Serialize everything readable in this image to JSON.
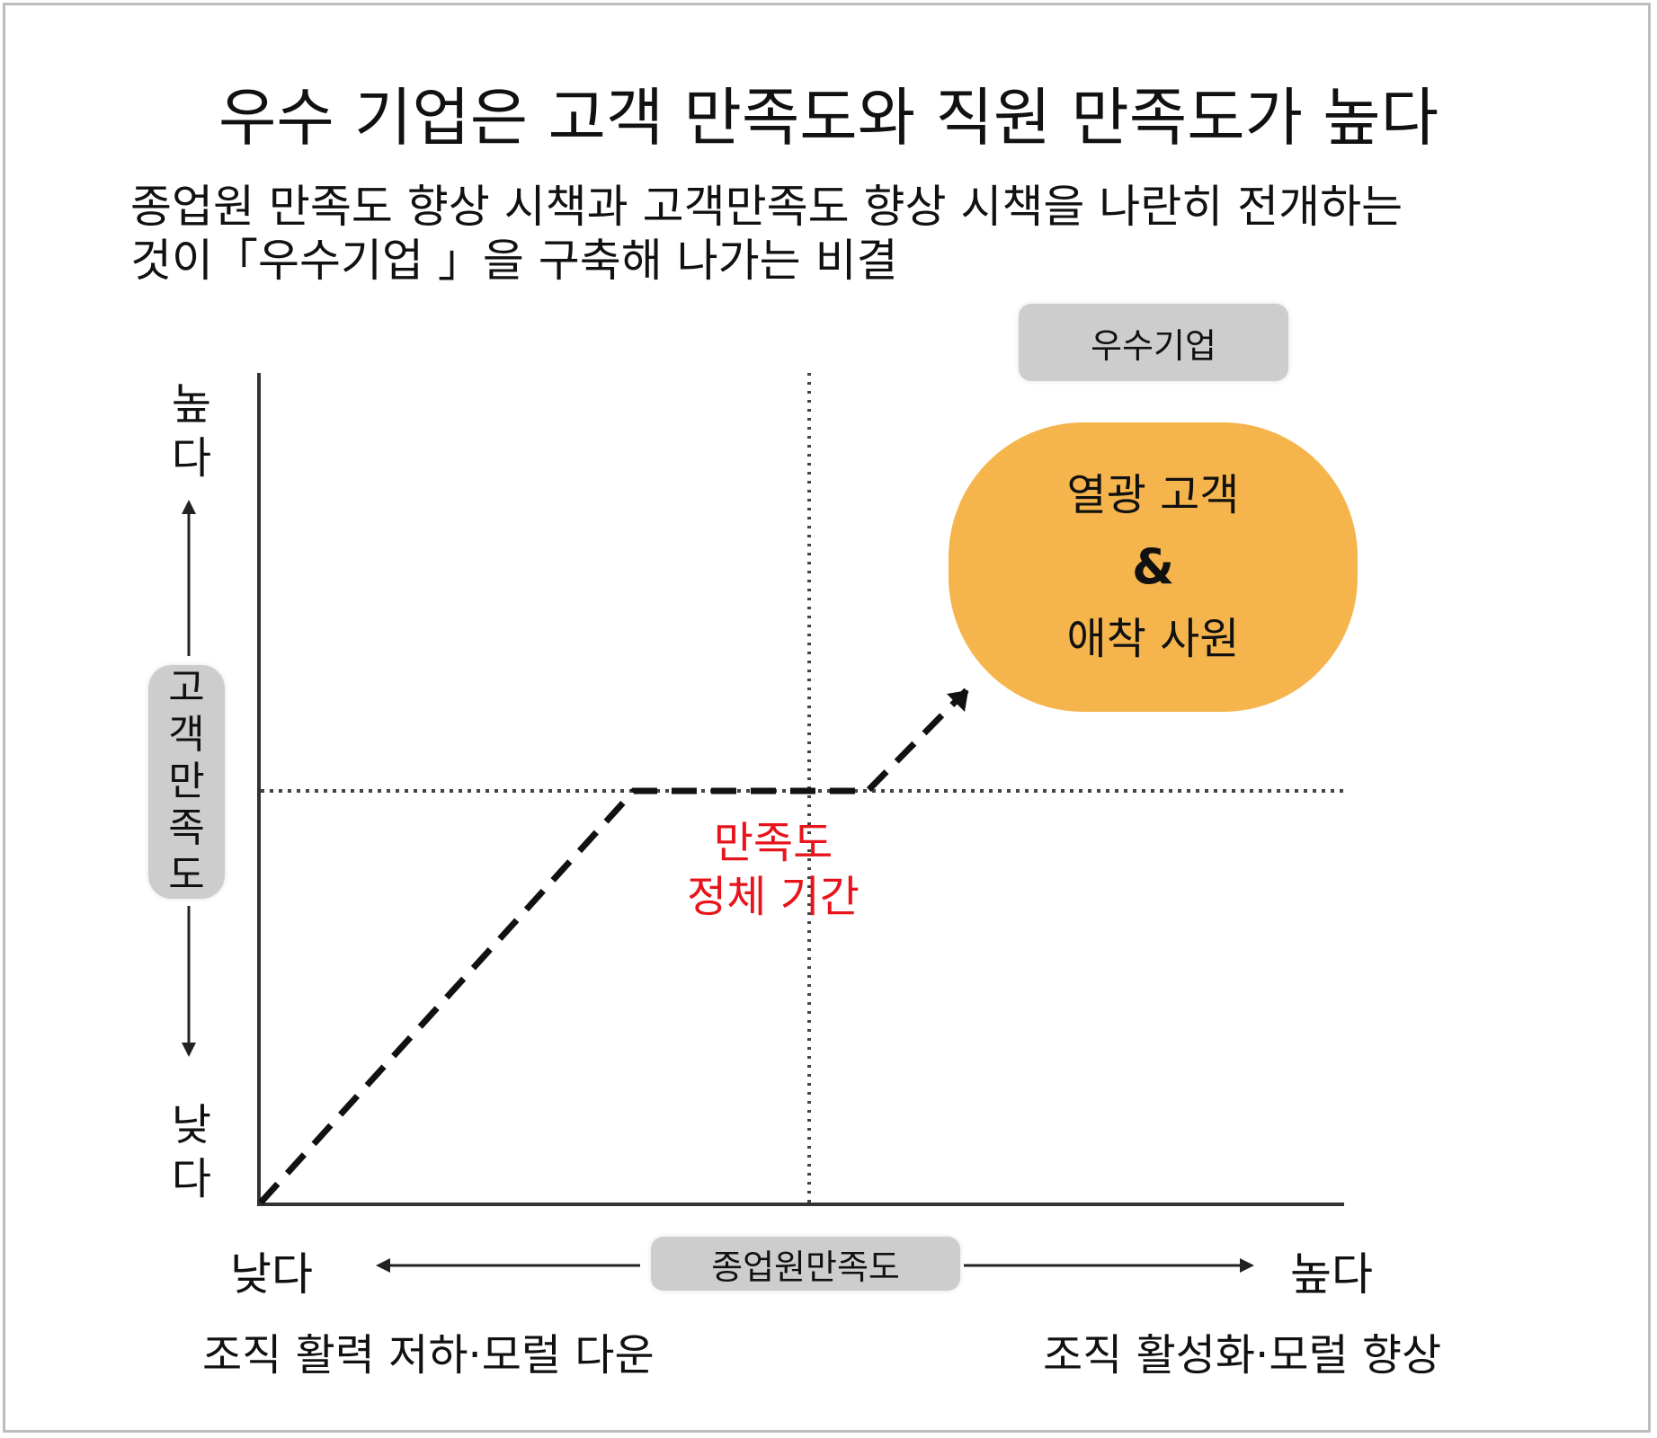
{
  "title": "우수 기업은 고객 만족도와 직원 만족도가 높다",
  "subtitle_line1": "종업원 만족도 향상 시책과  고객만족도 향상 시책을 나란히 전개하는",
  "subtitle_line2": "것이「우수기업 」을 구축해 나가는 비결",
  "top_right_label": "우수기업",
  "blob": {
    "line1": "열광 고객",
    "amp": "&",
    "line2": "애착 사원",
    "color": "#f5b54c"
  },
  "stagnation": {
    "line1": "만족도",
    "line2": "정체 기간",
    "color": "#e8141b"
  },
  "y_axis": {
    "label_chars": [
      "고",
      "객",
      "만",
      "족",
      "도"
    ],
    "high_chars": [
      "높",
      "다"
    ],
    "low_chars": [
      "낮",
      "다"
    ]
  },
  "x_axis": {
    "label": "종업원만족도",
    "low": "낮다",
    "high": "높다",
    "note_low": "조직 활력 저하·모럴 다운",
    "note_high": "조직 활성화·모럴 향상"
  },
  "pill_color": "#cdcdcd"
}
